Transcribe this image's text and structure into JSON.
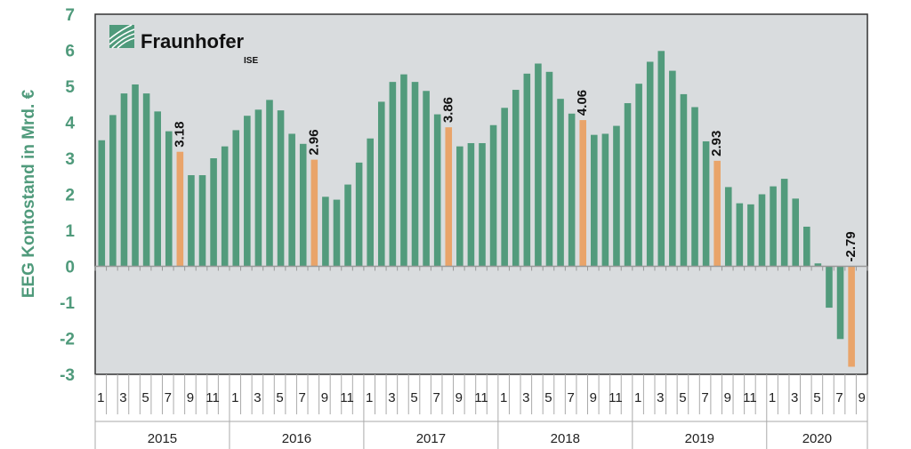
{
  "chart_data": {
    "type": "bar",
    "title": "",
    "ylabel": "EEG Kontostand in Mrd. €",
    "xlabel": "",
    "ylim": [
      -3,
      7
    ],
    "yticks": [
      "-3",
      "-2",
      "-1",
      "0",
      "1",
      "2",
      "3",
      "4",
      "5",
      "6",
      "7"
    ],
    "years": [
      "2015",
      "2016",
      "2017",
      "2018",
      "2019",
      "2020"
    ],
    "month_tick_labels": [
      "1",
      "3",
      "5",
      "7",
      "9",
      "11"
    ],
    "month_tick_labels_2020": [
      "1",
      "3",
      "5",
      "7",
      "9"
    ],
    "values": [
      3.5,
      4.2,
      4.8,
      5.05,
      4.8,
      4.3,
      3.75,
      3.18,
      2.53,
      2.53,
      3.0,
      3.33,
      3.78,
      4.18,
      4.35,
      4.62,
      4.33,
      3.68,
      3.4,
      2.96,
      1.93,
      1.85,
      2.27,
      2.88,
      3.55,
      4.57,
      5.12,
      5.33,
      5.12,
      4.87,
      4.22,
      3.86,
      3.33,
      3.42,
      3.42,
      3.92,
      4.4,
      4.9,
      5.35,
      5.63,
      5.4,
      4.65,
      4.24,
      4.06,
      3.65,
      3.68,
      3.9,
      4.53,
      5.07,
      5.68,
      5.98,
      5.43,
      4.78,
      4.42,
      3.47,
      2.93,
      2.2,
      1.75,
      1.72,
      2.0,
      2.22,
      2.43,
      1.88,
      1.1,
      0.08,
      -1.15,
      -2.02,
      -2.79,
      null
    ],
    "highlight_month": 8,
    "data_labels": [
      {
        "index": 7,
        "text": "3.18"
      },
      {
        "index": 19,
        "text": "2.96"
      },
      {
        "index": 31,
        "text": "3.86"
      },
      {
        "index": 43,
        "text": "4.06"
      },
      {
        "index": 55,
        "text": "2.93"
      },
      {
        "index": 67,
        "text": "-2.79"
      }
    ],
    "grid": false,
    "colors": {
      "bar": "#529b7c",
      "highlight": "#e9a46a",
      "plot_bg": "#d9dcde",
      "axis_text": "#4f9a7b"
    }
  },
  "logo": {
    "name": "Fraunhofer",
    "sub": "ISE"
  }
}
